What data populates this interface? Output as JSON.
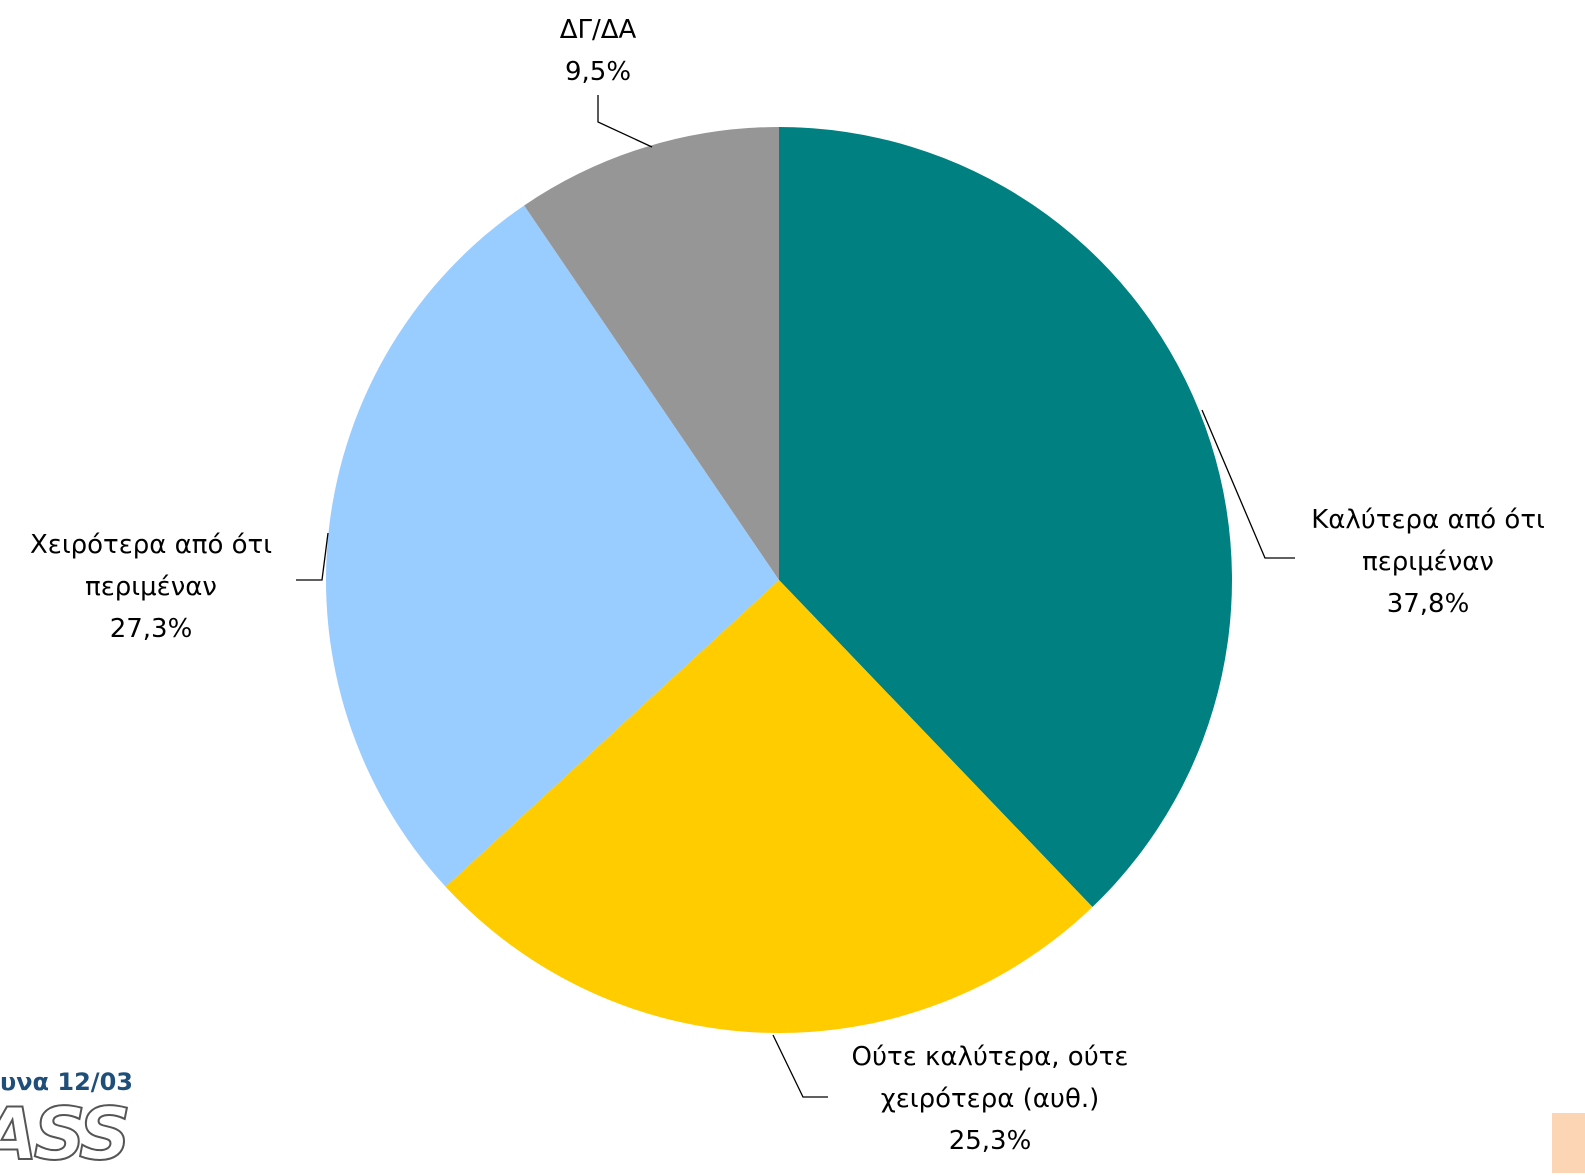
{
  "chart_data": {
    "type": "pie",
    "categories": [
      "Καλύτερα από ότι περιμέναν",
      "Ούτε καλύτερα, ούτε χειρότερα (αυθ.)",
      "Χειρότερα από ότι περιμέναν",
      "ΔΓ/ΔΑ"
    ],
    "values": [
      37.8,
      25.3,
      27.3,
      9.5
    ],
    "value_labels": [
      "37,8%",
      "25,3%",
      "27,3%",
      "9,5%"
    ],
    "colors": [
      "#008080",
      "#ffcc00",
      "#99ccff",
      "#969696"
    ]
  },
  "footer": {
    "date_text": "υνα 12/03",
    "logo": "ASS"
  }
}
